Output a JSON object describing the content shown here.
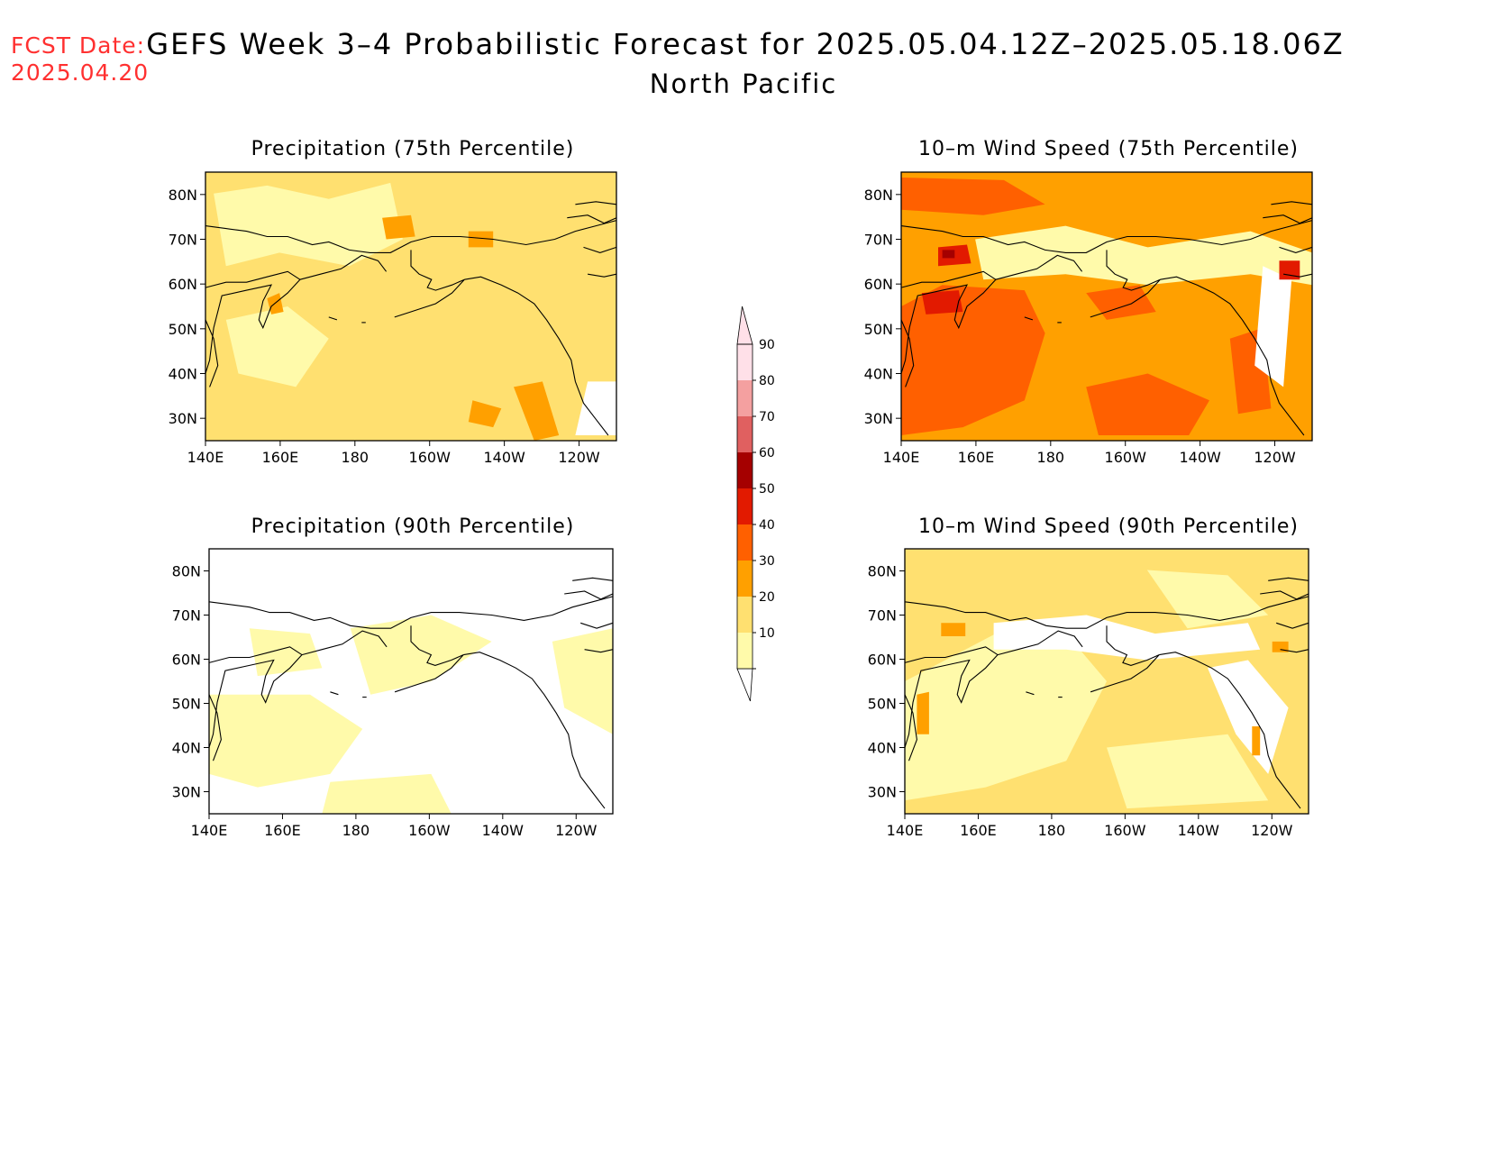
{
  "fcst": {
    "label": "FCST Date:",
    "date": "2025.04.20"
  },
  "title": {
    "line1": "GEFS Week 3–4 Probabilistic Forecast for 2025.05.04.12Z–2025.05.18.06Z",
    "line2": "North Pacific"
  },
  "panels": [
    {
      "id": "precip-75",
      "title": "Precipitation (75th Percentile)"
    },
    {
      "id": "wind-75",
      "title": "10–m Wind Speed (75th Percentile)"
    },
    {
      "id": "precip-90",
      "title": "Precipitation (90th Percentile)"
    },
    {
      "id": "wind-90",
      "title": "10–m Wind Speed (90th Percentile)"
    }
  ],
  "axes": {
    "lat_labels": [
      "80N",
      "70N",
      "60N",
      "50N",
      "40N",
      "30N"
    ],
    "lon_labels": [
      "140E",
      "160E",
      "180",
      "160W",
      "140W",
      "120W"
    ],
    "lat_values": [
      80,
      70,
      60,
      50,
      40,
      30
    ],
    "lon_values": [
      140,
      160,
      180,
      200,
      220,
      240
    ],
    "lat_range": [
      25,
      85
    ],
    "lon_range": [
      140,
      250
    ]
  },
  "colorbar": {
    "levels": [
      "10",
      "20",
      "30",
      "40",
      "50",
      "60",
      "70",
      "80",
      "90"
    ],
    "colors": [
      "#fffaaa",
      "#ffe070",
      "#ffa000",
      "#ff6000",
      "#e21a00",
      "#a50000",
      "#e06060",
      "#f4a0a0",
      "#ffe0e8"
    ]
  }
}
